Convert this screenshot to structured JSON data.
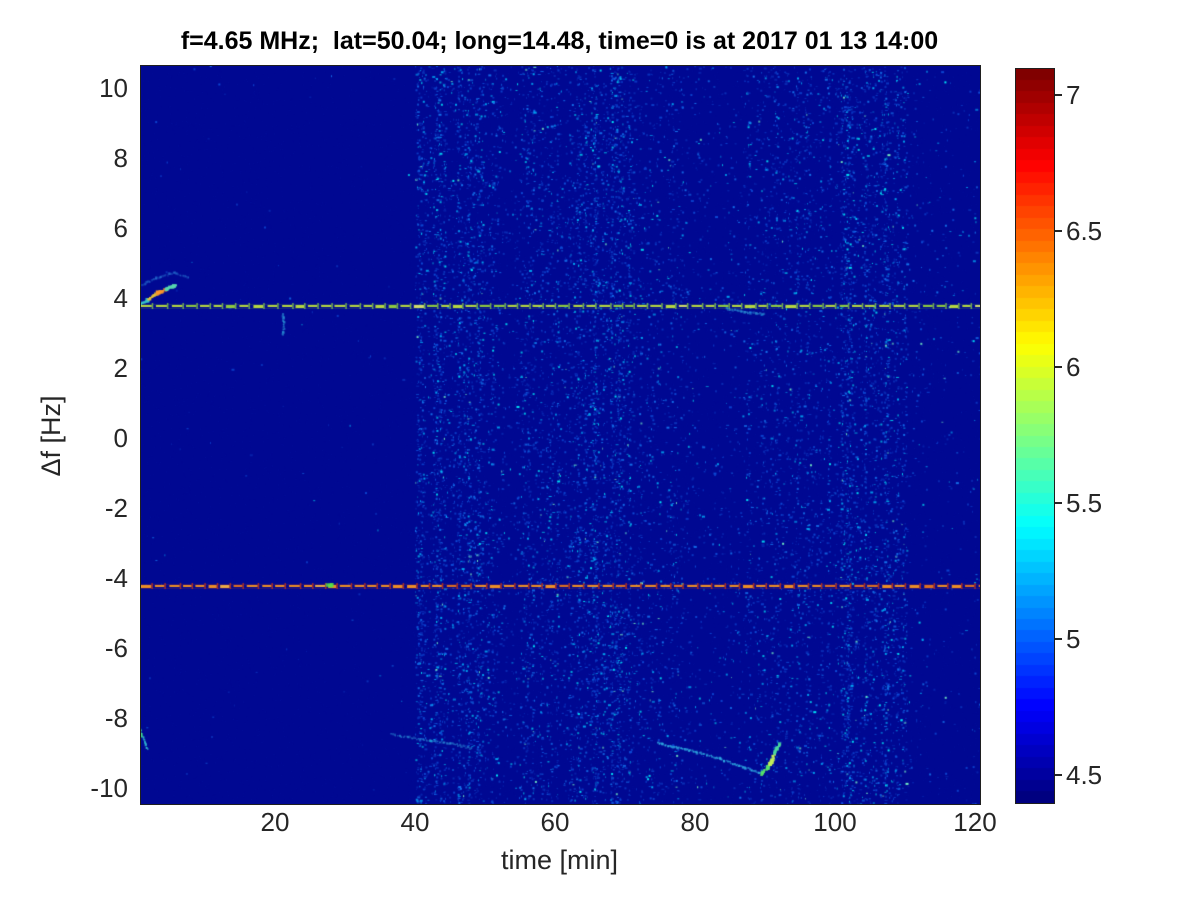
{
  "chart_data": {
    "type": "heatmap",
    "title": "f=4.65 MHz;  lat=50.04; long=14.48, time=0 is at 2017 01 13 14:00",
    "xlabel": "time [min]",
    "ylabel": "Δf [Hz]",
    "xlim": [
      0,
      121
    ],
    "ylim": [
      -10.5,
      10.66
    ],
    "xticks": [
      20,
      40,
      60,
      80,
      100,
      120
    ],
    "yticks": [
      10,
      8,
      6,
      4,
      2,
      0,
      -2,
      -4,
      -6,
      -8,
      -10
    ],
    "grid": false,
    "background_value_color": "#000892",
    "colorbar": {
      "min": 4.4,
      "max": 7.1,
      "ticks": [
        4.5,
        5,
        5.5,
        6,
        6.5,
        7
      ],
      "colormap": "jet",
      "levels": 64,
      "position": "right"
    },
    "signal_lines": [
      {
        "name": "upper-doppler-trace",
        "freq_hz": 3.8,
        "style": "dashed",
        "dash_colors": [
          "#c4e83c",
          "#9ada3a",
          "#e2ee6a"
        ],
        "tick_color": "#86cc48",
        "glow_color": "#6fae2e"
      },
      {
        "name": "lower-doppler-trace",
        "freq_hz": -4.2,
        "style": "dashed",
        "dash_colors": [
          "#ff9a1e",
          "#f07818",
          "#ffb840"
        ],
        "tick_color": "#cc3410",
        "glow_color": "#c83c10"
      }
    ],
    "noise_bands": [
      {
        "t0": 0.5,
        "t1": 40,
        "n": 1
      },
      {
        "t0": 40,
        "t1": 52,
        "n": 115
      },
      {
        "t0": 52,
        "t1": 55,
        "n": 45
      },
      {
        "t0": 55,
        "t1": 63,
        "n": 95
      },
      {
        "t0": 63,
        "t1": 71,
        "n": 130
      },
      {
        "t0": 71,
        "t1": 75,
        "n": 70
      },
      {
        "t0": 75,
        "t1": 80,
        "n": 55
      },
      {
        "t0": 80,
        "t1": 87,
        "n": 28
      },
      {
        "t0": 87,
        "t1": 93,
        "n": 65
      },
      {
        "t0": 93,
        "t1": 101,
        "n": 85
      },
      {
        "t0": 101,
        "t1": 110,
        "n": 118
      },
      {
        "t0": 110,
        "t1": 113,
        "n": 35
      },
      {
        "t0": 113,
        "t1": 121,
        "n": 13
      }
    ],
    "features": [
      {
        "name": "left-ascending-streak",
        "width": 3,
        "alpha": 0.95,
        "colors": [
          "#38c8c8",
          "#e8c334",
          "#ff9a28",
          "#58d8b0"
        ],
        "points": [
          [
            0.4,
            3.85
          ],
          [
            1.6,
            3.95
          ],
          [
            3.2,
            4.18
          ],
          [
            4.8,
            4.32
          ],
          [
            5.8,
            4.38
          ]
        ]
      },
      {
        "name": "left-streak-halo",
        "width": 2,
        "alpha": 0.4,
        "colors": [
          "#2a7fd8"
        ],
        "points": [
          [
            1.0,
            4.4
          ],
          [
            3.0,
            4.6
          ],
          [
            5.5,
            4.75
          ],
          [
            7.5,
            4.6
          ]
        ]
      },
      {
        "name": "wisp-below-upper-trace",
        "width": 2,
        "alpha": 0.55,
        "colors": [
          "#2fa8e0"
        ],
        "points": [
          [
            21.0,
            3.55
          ],
          [
            21.2,
            3.2
          ],
          [
            21.0,
            2.95
          ]
        ]
      },
      {
        "name": "bottom-left-green-streak",
        "width": 2,
        "alpha": 0.85,
        "colors": [
          "#3fd890",
          "#2fb8d0"
        ],
        "points": [
          [
            0.3,
            -8.15
          ],
          [
            0.9,
            -8.5
          ],
          [
            1.6,
            -8.85
          ]
        ]
      },
      {
        "name": "bottom-faint-arc",
        "width": 2,
        "alpha": 0.5,
        "colors": [
          "#2a8fd8"
        ],
        "points": [
          [
            36.5,
            -8.45
          ],
          [
            41,
            -8.6
          ],
          [
            45,
            -8.7
          ],
          [
            48,
            -8.85
          ]
        ]
      },
      {
        "name": "bottom-cyan-trail",
        "width": 2,
        "alpha": 0.7,
        "colors": [
          "#2fb0e4"
        ],
        "points": [
          [
            74.5,
            -8.7
          ],
          [
            79,
            -8.9
          ],
          [
            83.5,
            -9.15
          ],
          [
            87,
            -9.4
          ],
          [
            89.3,
            -9.55
          ]
        ]
      },
      {
        "name": "bottom-bright-hook",
        "width": 3,
        "alpha": 0.95,
        "colors": [
          "#56e06a",
          "#c2ee5a",
          "#49d8a0"
        ],
        "points": [
          [
            89.3,
            -9.6
          ],
          [
            90.6,
            -9.3
          ],
          [
            91.3,
            -8.95
          ],
          [
            92.0,
            -8.7
          ]
        ]
      },
      {
        "name": "trail-below-upper-trace",
        "width": 2,
        "alpha": 0.5,
        "colors": [
          "#2fa0dc"
        ],
        "points": [
          [
            84.5,
            3.72
          ],
          [
            87,
            3.62
          ],
          [
            89.8,
            3.55
          ]
        ]
      },
      {
        "name": "lower-trace-green-blip",
        "width": 4,
        "alpha": 0.95,
        "colors": [
          "#55e048"
        ],
        "points": [
          [
            27.4,
            -4.2
          ],
          [
            27.9,
            -4.2
          ]
        ]
      }
    ],
    "seed": 42
  }
}
